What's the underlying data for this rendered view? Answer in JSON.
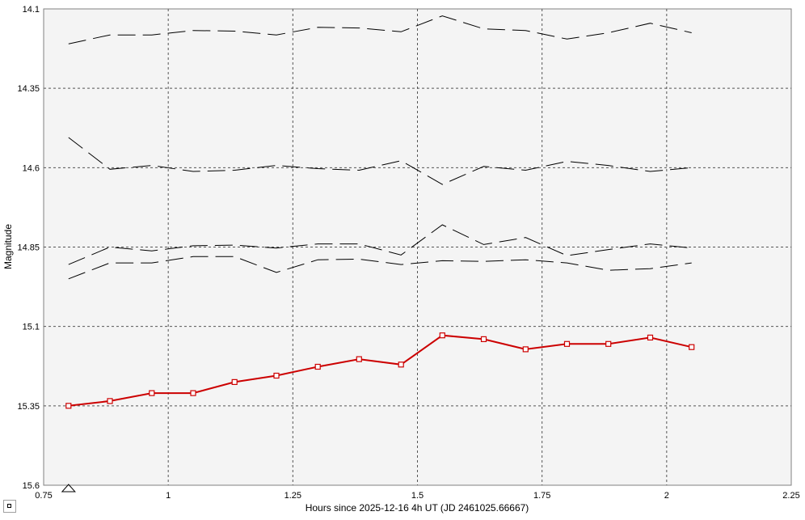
{
  "chart_data": {
    "type": "line",
    "title": "",
    "xlabel": "Hours since 2025-12-16 4h UT (JD 2461025.66667)",
    "ylabel": "Magnitude",
    "xlim": [
      0.75,
      2.25
    ],
    "ylim": [
      14.1,
      15.6
    ],
    "y_inverted": true,
    "grid": true,
    "x_ticks": [
      "0.75",
      "1",
      "1.25",
      "1.5",
      "1.75",
      "2",
      "2.25"
    ],
    "y_ticks": [
      "14.1",
      "14.35",
      "14.6",
      "14.85",
      "15.1",
      "15.35",
      "15.6"
    ],
    "x": [
      0.8,
      0.883,
      0.967,
      1.05,
      1.133,
      1.217,
      1.3,
      1.383,
      1.467,
      1.55,
      1.633,
      1.717,
      1.8,
      1.883,
      1.967,
      2.05
    ],
    "series": [
      {
        "color": "#cc0000",
        "style": "solid-markers",
        "marker": "square",
        "values": [
          15.35,
          15.335,
          15.31,
          15.31,
          15.275,
          15.255,
          15.227,
          15.203,
          15.22,
          15.128,
          15.14,
          15.172,
          15.155,
          15.155,
          15.135,
          15.165
        ]
      },
      {
        "color": "#000000",
        "style": "dashed",
        "values": [
          14.21,
          14.182,
          14.182,
          14.168,
          14.17,
          14.182,
          14.158,
          14.16,
          14.172,
          14.122,
          14.163,
          14.168,
          14.195,
          14.175,
          14.145,
          14.175
        ]
      },
      {
        "color": "#000000",
        "style": "dashed",
        "values": [
          14.505,
          14.605,
          14.593,
          14.612,
          14.608,
          14.593,
          14.603,
          14.608,
          14.578,
          14.653,
          14.596,
          14.608,
          14.58,
          14.593,
          14.612,
          14.6
        ]
      },
      {
        "color": "#000000",
        "style": "dashed",
        "values": [
          14.905,
          14.85,
          14.862,
          14.846,
          14.844,
          14.853,
          14.84,
          14.84,
          14.875,
          14.78,
          14.842,
          14.82,
          14.877,
          14.858,
          14.84,
          14.853
        ]
      },
      {
        "color": "#000000",
        "style": "dashed",
        "values": [
          14.95,
          14.9,
          14.9,
          14.88,
          14.88,
          14.93,
          14.89,
          14.888,
          14.905,
          14.893,
          14.895,
          14.89,
          14.9,
          14.923,
          14.918,
          14.9
        ]
      }
    ],
    "marker_triangle_x": 0.8
  }
}
